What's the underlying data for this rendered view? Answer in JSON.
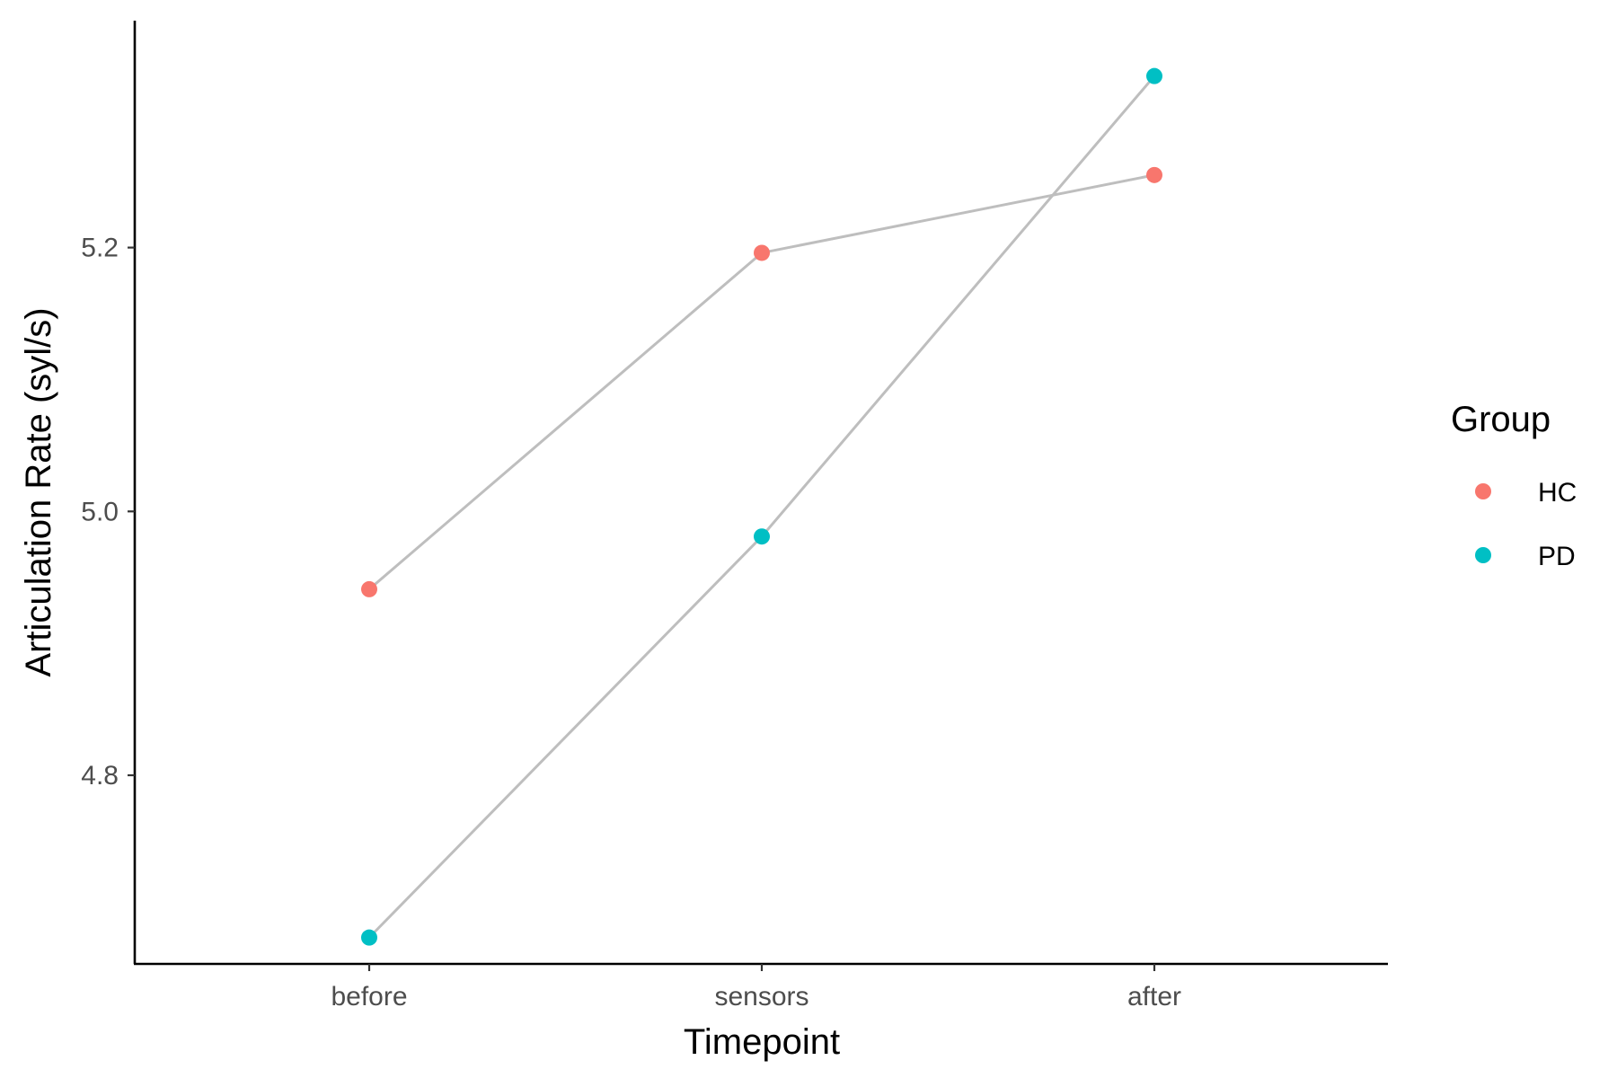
{
  "chart_data": {
    "type": "line",
    "xlabel": "Timepoint",
    "ylabel": "Articulation Rate (syl/s)",
    "categories": [
      "before",
      "sensors",
      "after"
    ],
    "yticks": [
      4.8,
      5.0,
      5.2
    ],
    "ytick_labels": [
      "4.8",
      "5.0",
      "5.2"
    ],
    "ylim": [
      4.657,
      5.372
    ],
    "line_color": "#bebebe",
    "series": [
      {
        "name": "HC",
        "color": "#f8766d",
        "values": [
          4.941,
          5.196,
          5.255
        ]
      },
      {
        "name": "PD",
        "color": "#00bfc4",
        "values": [
          4.677,
          4.981,
          5.33
        ]
      }
    ],
    "legend": {
      "title": "Group",
      "position": "right",
      "entries": [
        "HC",
        "PD"
      ]
    },
    "grid": false
  }
}
